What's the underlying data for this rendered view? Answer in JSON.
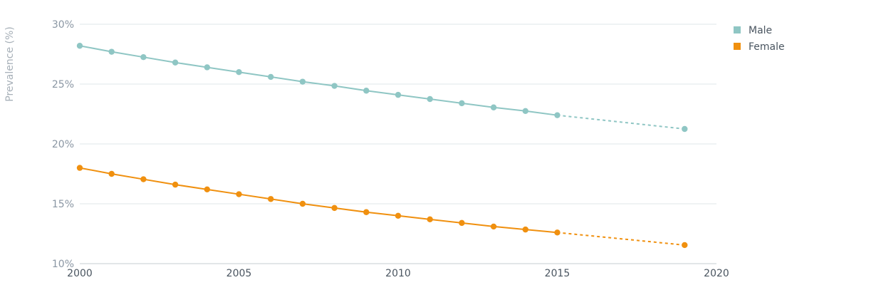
{
  "chart_data": {
    "type": "line",
    "title": "",
    "xlabel": "",
    "ylabel": "Prevalence (%)",
    "xlim": [
      2000,
      2020
    ],
    "ylim": [
      10,
      30
    ],
    "x_ticks": [
      2000,
      2005,
      2010,
      2015,
      2020
    ],
    "x_tick_labels": [
      "2000",
      "2005",
      "2010",
      "2015",
      "2020"
    ],
    "y_ticks": [
      10,
      15,
      20,
      25,
      30
    ],
    "y_tick_labels": [
      "10%",
      "15%",
      "20%",
      "25%",
      "30%"
    ],
    "grid": "horizontal",
    "legend_position": "top-right",
    "series": [
      {
        "name": "Male",
        "color": "#8fc6c4",
        "x": [
          2000,
          2001,
          2002,
          2003,
          2004,
          2005,
          2006,
          2007,
          2008,
          2009,
          2010,
          2011,
          2012,
          2013,
          2014,
          2015,
          2019
        ],
        "values": [
          28.2,
          27.7,
          27.25,
          26.8,
          26.4,
          26.0,
          25.6,
          25.2,
          24.85,
          24.45,
          24.1,
          23.75,
          23.4,
          23.05,
          22.75,
          22.4,
          21.25
        ],
        "projection_from": 2015
      },
      {
        "name": "Female",
        "color": "#f0900f",
        "x": [
          2000,
          2001,
          2002,
          2003,
          2004,
          2005,
          2006,
          2007,
          2008,
          2009,
          2010,
          2011,
          2012,
          2013,
          2014,
          2015,
          2019
        ],
        "values": [
          18.0,
          17.5,
          17.05,
          16.6,
          16.2,
          15.8,
          15.4,
          15.0,
          14.65,
          14.3,
          14.0,
          13.7,
          13.4,
          13.1,
          12.85,
          12.6,
          11.55
        ],
        "projection_from": 2015
      }
    ]
  }
}
